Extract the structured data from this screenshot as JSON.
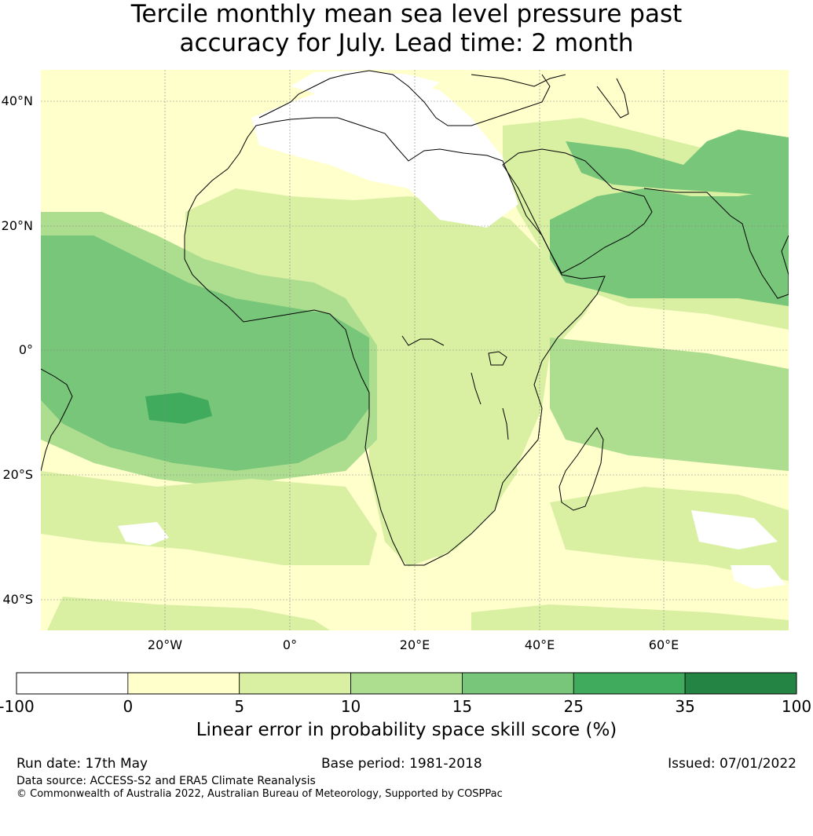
{
  "title": {
    "line1": "Tercile monthly mean sea level pressure past",
    "line2": "accuracy for July. Lead time: 2 month"
  },
  "map": {
    "lat_labels": [
      "40°N",
      "20°N",
      "0°",
      "20°S",
      "40°S"
    ],
    "lon_labels": [
      "20°W",
      "0°",
      "20°E",
      "40°E",
      "60°E"
    ],
    "ocean_base_color": "#ffffcc",
    "land_base_color": "#d9f0a3"
  },
  "colorbar": {
    "ticks": [
      "-100",
      "0",
      "5",
      "10",
      "15",
      "25",
      "35",
      "100"
    ],
    "colors": [
      "#ffffff",
      "#ffffcc",
      "#d9f0a3",
      "#addd8e",
      "#78c679",
      "#41ab5d",
      "#238443"
    ],
    "label": "Linear error in probability space skill score (%)"
  },
  "footer": {
    "run_date": "Run date: 17th May",
    "base_period": "Base period: 1981-2018",
    "issued": "Issued: 07/01/2022",
    "data_source": "Data source: ACCESS-S2 and ERA5 Climate Reanalysis",
    "copyright": "© Commonwealth of Australia 2022, Australian Bureau of Meteorology, Supported by COSPPac"
  }
}
